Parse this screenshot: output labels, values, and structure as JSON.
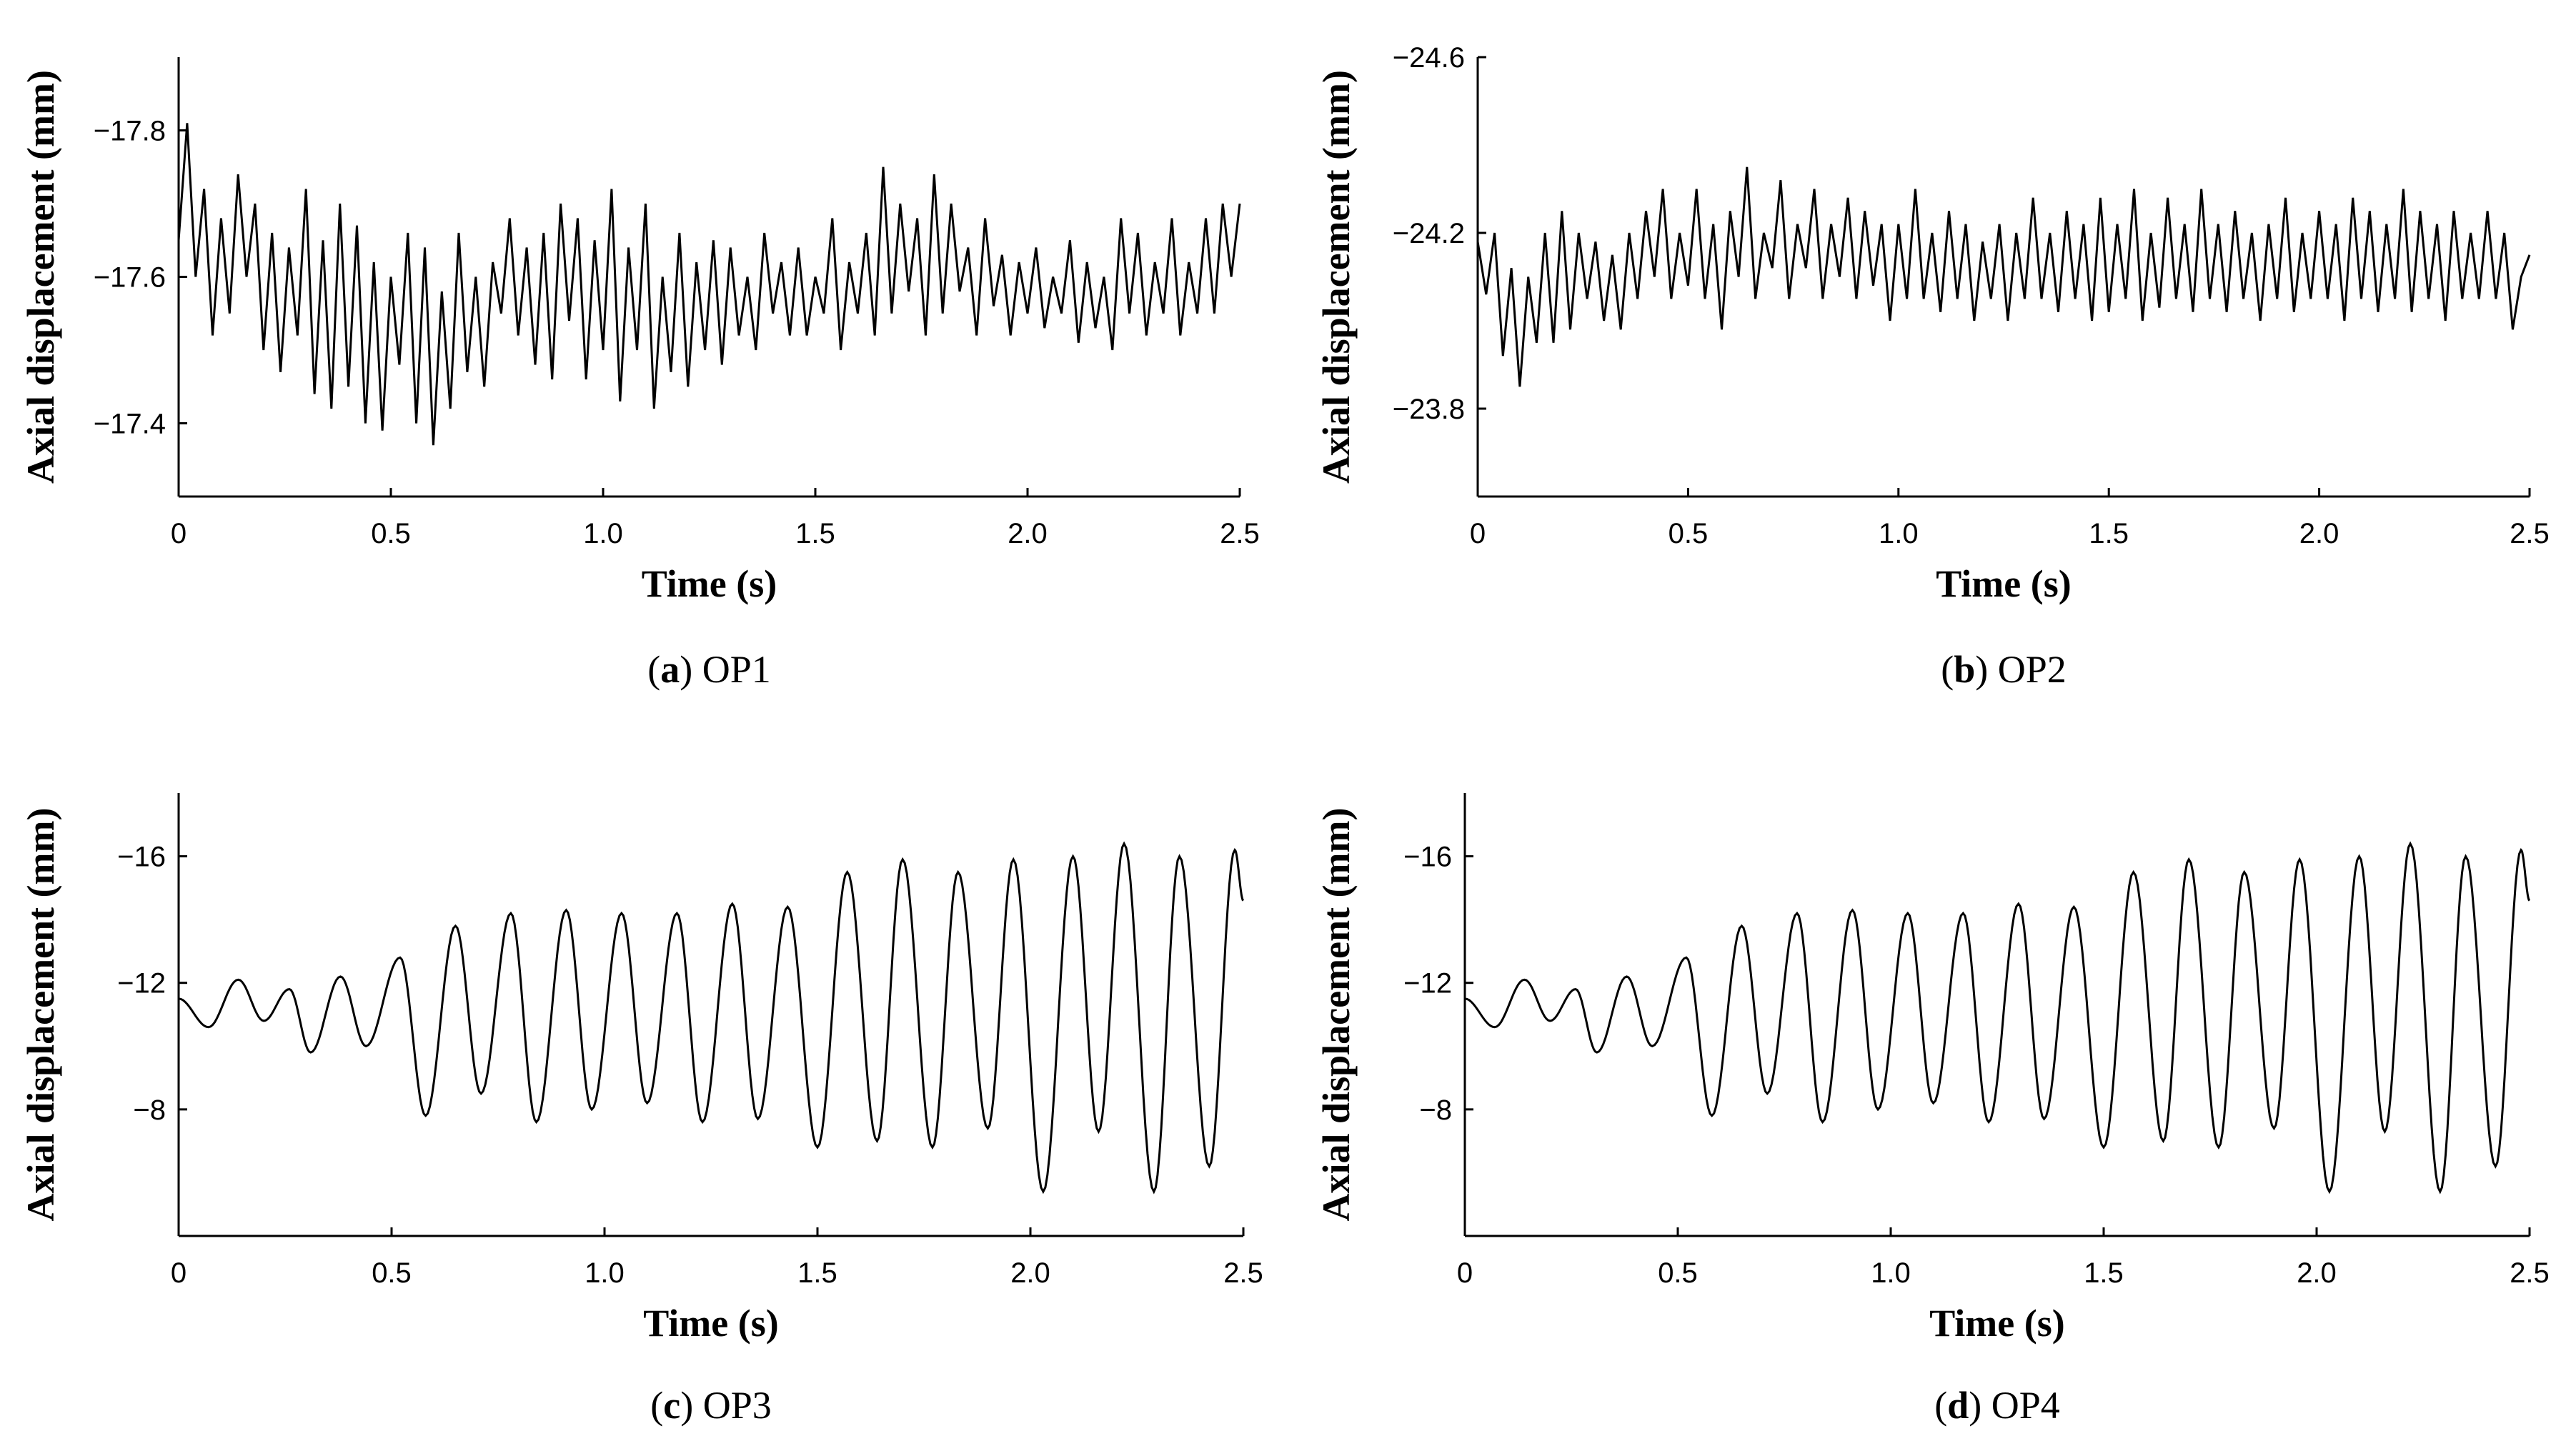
{
  "chart_data": [
    {
      "type": "line",
      "id": "a",
      "caption_letter": "a",
      "caption_text": "OP1",
      "xlabel": "Time (s)",
      "ylabel": "Axial displacement (mm)",
      "xlim": [
        0,
        2.5
      ],
      "ylim": [
        -17.3,
        -17.9
      ],
      "xticks": [
        0,
        0.5,
        1.0,
        1.5,
        2.0,
        2.5
      ],
      "xtick_labels": [
        "0",
        "0.5",
        "1.0",
        "1.5",
        "2.0",
        "2.5"
      ],
      "yticks": [
        -17.8,
        -17.6,
        -17.4
      ],
      "ytick_labels": [
        "−17.8",
        "−17.6",
        "−17.4"
      ],
      "x": [
        0,
        0.02,
        0.04,
        0.06,
        0.08,
        0.1,
        0.12,
        0.14,
        0.16,
        0.18,
        0.2,
        0.22,
        0.24,
        0.26,
        0.28,
        0.3,
        0.32,
        0.34,
        0.36,
        0.38,
        0.4,
        0.42,
        0.44,
        0.46,
        0.48,
        0.5,
        0.52,
        0.54,
        0.56,
        0.58,
        0.6,
        0.62,
        0.64,
        0.66,
        0.68,
        0.7,
        0.72,
        0.74,
        0.76,
        0.78,
        0.8,
        0.82,
        0.84,
        0.86,
        0.88,
        0.9,
        0.92,
        0.94,
        0.96,
        0.98,
        1.0,
        1.02,
        1.04,
        1.06,
        1.08,
        1.1,
        1.12,
        1.14,
        1.16,
        1.18,
        1.2,
        1.22,
        1.24,
        1.26,
        1.28,
        1.3,
        1.32,
        1.34,
        1.36,
        1.38,
        1.4,
        1.42,
        1.44,
        1.46,
        1.48,
        1.5,
        1.52,
        1.54,
        1.56,
        1.58,
        1.6,
        1.62,
        1.64,
        1.66,
        1.68,
        1.7,
        1.72,
        1.74,
        1.76,
        1.78,
        1.8,
        1.82,
        1.84,
        1.86,
        1.88,
        1.9,
        1.92,
        1.94,
        1.96,
        1.98,
        2.0,
        2.02,
        2.04,
        2.06,
        2.08,
        2.1,
        2.12,
        2.14,
        2.16,
        2.18,
        2.2,
        2.22,
        2.24,
        2.26,
        2.28,
        2.3,
        2.32,
        2.34,
        2.36,
        2.38,
        2.4,
        2.42,
        2.44,
        2.46,
        2.48,
        2.5
      ],
      "y": [
        -17.65,
        -17.81,
        -17.6,
        -17.72,
        -17.52,
        -17.68,
        -17.55,
        -17.74,
        -17.6,
        -17.7,
        -17.5,
        -17.66,
        -17.47,
        -17.64,
        -17.52,
        -17.72,
        -17.44,
        -17.65,
        -17.42,
        -17.7,
        -17.45,
        -17.67,
        -17.4,
        -17.62,
        -17.39,
        -17.6,
        -17.48,
        -17.66,
        -17.4,
        -17.64,
        -17.37,
        -17.58,
        -17.42,
        -17.66,
        -17.47,
        -17.6,
        -17.45,
        -17.62,
        -17.55,
        -17.68,
        -17.52,
        -17.64,
        -17.48,
        -17.66,
        -17.46,
        -17.7,
        -17.54,
        -17.68,
        -17.46,
        -17.65,
        -17.5,
        -17.72,
        -17.43,
        -17.64,
        -17.5,
        -17.7,
        -17.42,
        -17.6,
        -17.47,
        -17.66,
        -17.45,
        -17.62,
        -17.5,
        -17.65,
        -17.48,
        -17.64,
        -17.52,
        -17.6,
        -17.5,
        -17.66,
        -17.55,
        -17.62,
        -17.52,
        -17.64,
        -17.52,
        -17.6,
        -17.55,
        -17.68,
        -17.5,
        -17.62,
        -17.55,
        -17.66,
        -17.52,
        -17.75,
        -17.55,
        -17.7,
        -17.58,
        -17.68,
        -17.52,
        -17.74,
        -17.55,
        -17.7,
        -17.58,
        -17.64,
        -17.52,
        -17.68,
        -17.56,
        -17.63,
        -17.52,
        -17.62,
        -17.55,
        -17.64,
        -17.53,
        -17.6,
        -17.55,
        -17.65,
        -17.51,
        -17.62,
        -17.53,
        -17.6,
        -17.5,
        -17.68,
        -17.55,
        -17.66,
        -17.52,
        -17.62,
        -17.55,
        -17.68,
        -17.52,
        -17.62,
        -17.55,
        -17.68,
        -17.55,
        -17.7,
        -17.6,
        -17.7
      ]
    },
    {
      "type": "line",
      "id": "b",
      "caption_letter": "b",
      "caption_text": "OP2",
      "xlabel": "Time (s)",
      "ylabel": "Axial displacement (mm)",
      "xlim": [
        0,
        2.5
      ],
      "ylim": [
        -23.6,
        -24.6
      ],
      "xticks": [
        0,
        0.5,
        1.0,
        1.5,
        2.0,
        2.5
      ],
      "xtick_labels": [
        "0",
        "0.5",
        "1.0",
        "1.5",
        "2.0",
        "2.5"
      ],
      "yticks": [
        -24.6,
        -24.2,
        -23.8
      ],
      "ytick_labels": [
        "−24.6",
        "−24.2",
        "−23.8"
      ],
      "x": [
        0,
        0.02,
        0.04,
        0.06,
        0.08,
        0.1,
        0.12,
        0.14,
        0.16,
        0.18,
        0.2,
        0.22,
        0.24,
        0.26,
        0.28,
        0.3,
        0.32,
        0.34,
        0.36,
        0.38,
        0.4,
        0.42,
        0.44,
        0.46,
        0.48,
        0.5,
        0.52,
        0.54,
        0.56,
        0.58,
        0.6,
        0.62,
        0.64,
        0.66,
        0.68,
        0.7,
        0.72,
        0.74,
        0.76,
        0.78,
        0.8,
        0.82,
        0.84,
        0.86,
        0.88,
        0.9,
        0.92,
        0.94,
        0.96,
        0.98,
        1.0,
        1.02,
        1.04,
        1.06,
        1.08,
        1.1,
        1.12,
        1.14,
        1.16,
        1.18,
        1.2,
        1.22,
        1.24,
        1.26,
        1.28,
        1.3,
        1.32,
        1.34,
        1.36,
        1.38,
        1.4,
        1.42,
        1.44,
        1.46,
        1.48,
        1.5,
        1.52,
        1.54,
        1.56,
        1.58,
        1.6,
        1.62,
        1.64,
        1.66,
        1.68,
        1.7,
        1.72,
        1.74,
        1.76,
        1.78,
        1.8,
        1.82,
        1.84,
        1.86,
        1.88,
        1.9,
        1.92,
        1.94,
        1.96,
        1.98,
        2.0,
        2.02,
        2.04,
        2.06,
        2.08,
        2.1,
        2.12,
        2.14,
        2.16,
        2.18,
        2.2,
        2.22,
        2.24,
        2.26,
        2.28,
        2.3,
        2.32,
        2.34,
        2.36,
        2.38,
        2.4,
        2.42,
        2.44,
        2.46,
        2.48,
        2.5
      ],
      "y": [
        -24.18,
        -24.06,
        -24.2,
        -23.92,
        -24.12,
        -23.85,
        -24.1,
        -23.95,
        -24.2,
        -23.95,
        -24.25,
        -23.98,
        -24.2,
        -24.05,
        -24.18,
        -24.0,
        -24.15,
        -23.98,
        -24.2,
        -24.05,
        -24.25,
        -24.1,
        -24.3,
        -24.05,
        -24.2,
        -24.08,
        -24.3,
        -24.05,
        -24.22,
        -23.98,
        -24.25,
        -24.1,
        -24.35,
        -24.05,
        -24.2,
        -24.12,
        -24.32,
        -24.05,
        -24.22,
        -24.12,
        -24.3,
        -24.05,
        -24.22,
        -24.1,
        -24.28,
        -24.05,
        -24.25,
        -24.08,
        -24.22,
        -24.0,
        -24.22,
        -24.05,
        -24.3,
        -24.05,
        -24.2,
        -24.02,
        -24.25,
        -24.05,
        -24.22,
        -24.0,
        -24.18,
        -24.05,
        -24.22,
        -24.0,
        -24.2,
        -24.05,
        -24.28,
        -24.05,
        -24.2,
        -24.02,
        -24.25,
        -24.05,
        -24.22,
        -24.0,
        -24.28,
        -24.02,
        -24.22,
        -24.05,
        -24.3,
        -24.0,
        -24.2,
        -24.03,
        -24.28,
        -24.05,
        -24.22,
        -24.02,
        -24.3,
        -24.05,
        -24.22,
        -24.02,
        -24.25,
        -24.05,
        -24.2,
        -24.0,
        -24.22,
        -24.05,
        -24.28,
        -24.02,
        -24.2,
        -24.05,
        -24.25,
        -24.05,
        -24.22,
        -24.0,
        -24.28,
        -24.05,
        -24.25,
        -24.02,
        -24.22,
        -24.05,
        -24.3,
        -24.02,
        -24.25,
        -24.05,
        -24.22,
        -24.0,
        -24.25,
        -24.05,
        -24.2,
        -24.05,
        -24.25,
        -24.05,
        -24.2,
        -23.98,
        -24.1,
        -24.15
      ]
    },
    {
      "type": "line",
      "id": "c",
      "caption_letter": "c",
      "caption_text": "OP3",
      "xlabel": "Time (s)",
      "ylabel": "Axial displacement (mm)",
      "xlim": [
        0,
        2.5
      ],
      "ylim": [
        -4,
        -18
      ],
      "xticks": [
        0,
        0.5,
        1.0,
        1.5,
        2.0,
        2.5
      ],
      "xtick_labels": [
        "0",
        "0.5",
        "1.0",
        "1.5",
        "2.0",
        "2.5"
      ],
      "yticks": [
        -16,
        -12,
        -8
      ],
      "ytick_labels": [
        "−16",
        "−12",
        "−8"
      ],
      "peaks": [
        [
          0,
          -11.5
        ],
        [
          0.07,
          -10.6
        ],
        [
          0.14,
          -12.1
        ],
        [
          0.2,
          -10.8
        ],
        [
          0.26,
          -11.8
        ],
        [
          0.31,
          -9.8
        ],
        [
          0.38,
          -12.2
        ],
        [
          0.44,
          -10.0
        ],
        [
          0.52,
          -12.8
        ],
        [
          0.58,
          -7.8
        ],
        [
          0.65,
          -13.8
        ],
        [
          0.71,
          -8.5
        ],
        [
          0.78,
          -14.2
        ],
        [
          0.84,
          -7.6
        ],
        [
          0.91,
          -14.3
        ],
        [
          0.97,
          -8.0
        ],
        [
          1.04,
          -14.2
        ],
        [
          1.1,
          -8.2
        ],
        [
          1.17,
          -14.2
        ],
        [
          1.23,
          -7.6
        ],
        [
          1.3,
          -14.5
        ],
        [
          1.36,
          -7.7
        ],
        [
          1.43,
          -14.4
        ],
        [
          1.5,
          -6.8
        ],
        [
          1.57,
          -15.5
        ],
        [
          1.64,
          -7.0
        ],
        [
          1.7,
          -15.9
        ],
        [
          1.77,
          -6.8
        ],
        [
          1.83,
          -15.5
        ],
        [
          1.9,
          -7.4
        ],
        [
          1.96,
          -15.9
        ],
        [
          2.03,
          -5.4
        ],
        [
          2.1,
          -16.0
        ],
        [
          2.16,
          -7.3
        ],
        [
          2.22,
          -16.4
        ],
        [
          2.29,
          -5.4
        ],
        [
          2.35,
          -16.0
        ],
        [
          2.42,
          -6.2
        ],
        [
          2.48,
          -16.2
        ],
        [
          2.5,
          -14.6
        ]
      ]
    },
    {
      "type": "line",
      "id": "d",
      "caption_letter": "d",
      "caption_text": "OP4",
      "xlabel": "Time (s)",
      "ylabel": "Axial displacement (mm)",
      "xlim": [
        0,
        2.5
      ],
      "ylim": [
        -4,
        -18
      ],
      "xticks": [
        0,
        0.5,
        1.0,
        1.5,
        2.0,
        2.5
      ],
      "xtick_labels": [
        "0",
        "0.5",
        "1.0",
        "1.5",
        "2.0",
        "2.5"
      ],
      "yticks": [
        -16,
        -12,
        -8
      ],
      "ytick_labels": [
        "−16",
        "−12",
        "−8"
      ],
      "peaks": [
        [
          0,
          -11.5
        ],
        [
          0.07,
          -10.6
        ],
        [
          0.14,
          -12.1
        ],
        [
          0.2,
          -10.8
        ],
        [
          0.26,
          -11.8
        ],
        [
          0.31,
          -9.8
        ],
        [
          0.38,
          -12.2
        ],
        [
          0.44,
          -10.0
        ],
        [
          0.52,
          -12.8
        ],
        [
          0.58,
          -7.8
        ],
        [
          0.65,
          -13.8
        ],
        [
          0.71,
          -8.5
        ],
        [
          0.78,
          -14.2
        ],
        [
          0.84,
          -7.6
        ],
        [
          0.91,
          -14.3
        ],
        [
          0.97,
          -8.0
        ],
        [
          1.04,
          -14.2
        ],
        [
          1.1,
          -8.2
        ],
        [
          1.17,
          -14.2
        ],
        [
          1.23,
          -7.6
        ],
        [
          1.3,
          -14.5
        ],
        [
          1.36,
          -7.7
        ],
        [
          1.43,
          -14.4
        ],
        [
          1.5,
          -6.8
        ],
        [
          1.57,
          -15.5
        ],
        [
          1.64,
          -7.0
        ],
        [
          1.7,
          -15.9
        ],
        [
          1.77,
          -6.8
        ],
        [
          1.83,
          -15.5
        ],
        [
          1.9,
          -7.4
        ],
        [
          1.96,
          -15.9
        ],
        [
          2.03,
          -5.4
        ],
        [
          2.1,
          -16.0
        ],
        [
          2.16,
          -7.3
        ],
        [
          2.22,
          -16.4
        ],
        [
          2.29,
          -5.4
        ],
        [
          2.35,
          -16.0
        ],
        [
          2.42,
          -6.2
        ],
        [
          2.48,
          -16.2
        ],
        [
          2.5,
          -14.6
        ]
      ]
    }
  ]
}
